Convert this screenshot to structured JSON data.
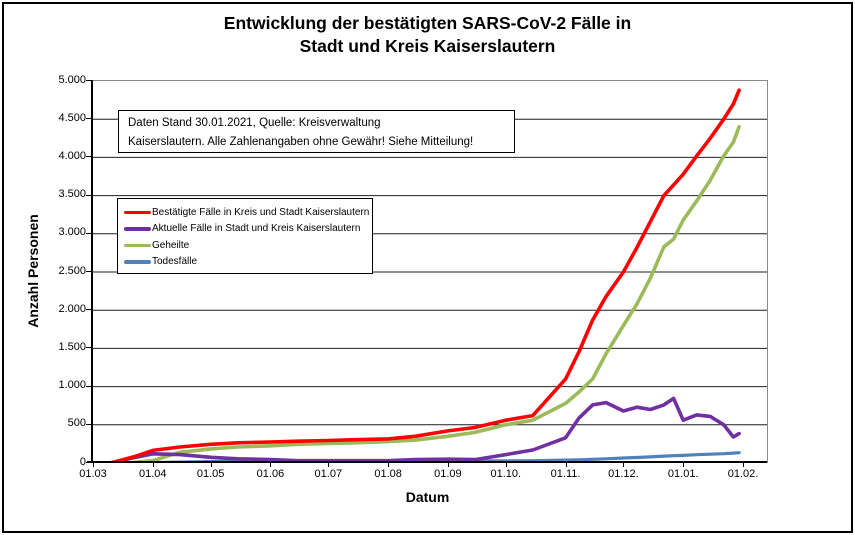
{
  "title": {
    "line1": "Entwicklung der bestätigten SARS-CoV-2 Fälle in",
    "line2": "Stadt und Kreis Kaiserslautern"
  },
  "annotation": {
    "line1": "Daten Stand 30.01.2021, Quelle: Kreisverwaltung",
    "line2": "Kaiserslautern. Alle Zahlenangaben ohne Gewähr! Siehe Mitteilung!"
  },
  "y_axis": {
    "title": "Anzahl Personen",
    "tick_labels": [
      "0",
      "500",
      "1.000",
      "1.500",
      "2.000",
      "2.500",
      "3.000",
      "3.500",
      "4.000",
      "4.500",
      "5.000"
    ]
  },
  "x_axis": {
    "title": "Datum",
    "tick_labels": [
      "01.03",
      "01.04",
      "01.05",
      "01.06",
      "01.07",
      "01.08",
      "01.09",
      "01.10.",
      "01.11.",
      "01.12.",
      "01.01.",
      "01.02."
    ]
  },
  "chart_data": {
    "type": "line",
    "title": "Entwicklung der bestätigten SARS-CoV-2 Fälle in Stadt und Kreis Kaiserslautern",
    "xlabel": "Datum",
    "ylabel": "Anzahl Personen",
    "ylim": [
      0,
      5000
    ],
    "y_tick_step": 500,
    "grid": "horizontal",
    "legend_position": "inside-upper-left",
    "x_tick_labels": [
      "01.03",
      "01.04",
      "01.05",
      "01.06",
      "01.07",
      "01.08",
      "01.09",
      "01.10.",
      "01.11.",
      "01.12.",
      "01.01.",
      "01.02."
    ],
    "x_tick_days": [
      0,
      31,
      61,
      92,
      122,
      153,
      184,
      214,
      245,
      275,
      306,
      337
    ],
    "x_axis_span_days": 337,
    "dates": [
      "01.03.",
      "10.03.",
      "22.03.",
      "01.04.",
      "15.04.",
      "01.05.",
      "15.05.",
      "01.06.",
      "15.06.",
      "01.07.",
      "15.07.",
      "01.08.",
      "15.08.",
      "01.09.",
      "15.09.",
      "01.10.",
      "15.10.",
      "01.11.",
      "08.11.",
      "15.11.",
      "22.11.",
      "01.12.",
      "08.12.",
      "15.12.",
      "22.12.",
      "27.12.",
      "01.01.",
      "08.01.",
      "15.01.",
      "22.01.",
      "27.01.",
      "30.01."
    ],
    "x_days": [
      0,
      9,
      21,
      31,
      45,
      61,
      75,
      92,
      106,
      122,
      136,
      153,
      167,
      184,
      198,
      214,
      228,
      245,
      252,
      259,
      266,
      275,
      282,
      289,
      296,
      301,
      306,
      313,
      320,
      327,
      332,
      335
    ],
    "series": [
      {
        "id": "bestaetigte",
        "name": "Bestätigte Fälle in Kreis und Stadt Kaiserslautern",
        "color": "#FF0000",
        "values": [
          0,
          0,
          80,
          165,
          210,
          245,
          265,
          275,
          285,
          295,
          305,
          315,
          350,
          420,
          465,
          560,
          620,
          1100,
          1460,
          1870,
          2180,
          2500,
          2820,
          3160,
          3500,
          3640,
          3780,
          4020,
          4250,
          4500,
          4700,
          4880
        ]
      },
      {
        "id": "aktuelle",
        "name": "Aktuelle Fälle in Stadt und Kreis Kaiserslautern",
        "color": "#7030A0",
        "values": [
          0,
          0,
          70,
          120,
          110,
          75,
          55,
          45,
          30,
          30,
          30,
          30,
          45,
          50,
          45,
          110,
          170,
          330,
          590,
          760,
          790,
          680,
          730,
          700,
          760,
          845,
          560,
          630,
          610,
          500,
          340,
          385
        ]
      },
      {
        "id": "geheilte",
        "name": "Geheilte",
        "color": "#9BBB59",
        "values": [
          0,
          0,
          5,
          30,
          140,
          185,
          210,
          225,
          245,
          255,
          265,
          280,
          300,
          350,
          400,
          500,
          560,
          780,
          930,
          1100,
          1430,
          1800,
          2080,
          2420,
          2830,
          2930,
          3180,
          3430,
          3700,
          4020,
          4200,
          4400
        ]
      },
      {
        "id": "todesfaelle",
        "name": "Todesfälle",
        "color": "#4F81BD",
        "values": [
          0,
          0,
          2,
          5,
          12,
          18,
          22,
          24,
          25,
          25,
          25,
          25,
          26,
          26,
          27,
          28,
          30,
          38,
          42,
          48,
          55,
          65,
          72,
          80,
          90,
          95,
          100,
          108,
          115,
          122,
          130,
          135
        ]
      }
    ]
  }
}
